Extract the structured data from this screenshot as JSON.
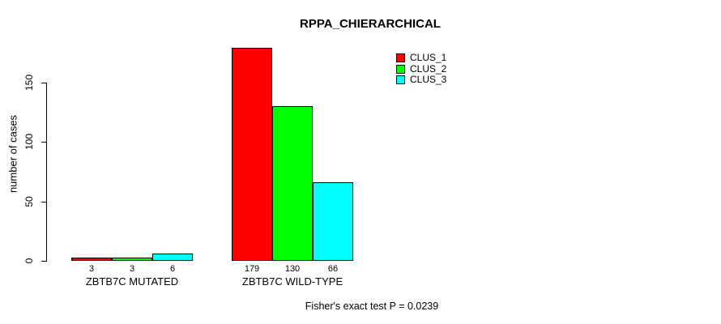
{
  "chart_data": {
    "type": "bar",
    "title": "RPPA_CHIERARCHICAL",
    "xlabel": "",
    "ylabel": "number of cases",
    "categories": [
      "ZBTB7C MUTATED",
      "ZBTB7C WILD-TYPE"
    ],
    "series": [
      {
        "name": "CLUS_1",
        "color": "#ff0000",
        "values": [
          3,
          179
        ]
      },
      {
        "name": "CLUS_2",
        "color": "#00ff00",
        "values": [
          3,
          130
        ]
      },
      {
        "name": "CLUS_3",
        "color": "#00ffff",
        "values": [
          6,
          66
        ]
      }
    ],
    "yticks": [
      0,
      50,
      100,
      150
    ],
    "ylim": [
      0,
      185
    ],
    "grid": false,
    "legend_position": "top-right",
    "bar_border_color": "#000000",
    "annotation": "Fisher's exact test P = 0.0239"
  }
}
